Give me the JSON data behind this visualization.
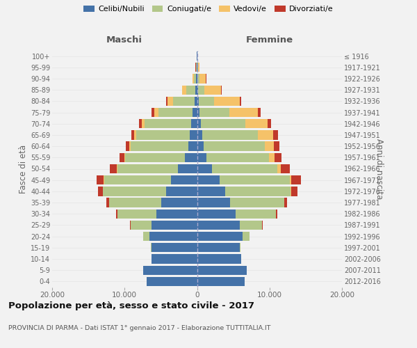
{
  "title": "Popolazione per età, sesso e stato civile - 2017",
  "subtitle": "PROVINCIA DI PARMA - Dati ISTAT 1° gennaio 2017 - Elaborazione TUTTITALIA.IT",
  "ylabel_left": "Fasce di età",
  "ylabel_right": "Anni di nascita",
  "label_maschi": "Maschi",
  "label_femmine": "Femmine",
  "legend_labels": [
    "Celibi/Nubili",
    "Coniugati/e",
    "Vedovi/e",
    "Divorziati/e"
  ],
  "colors": [
    "#4472a8",
    "#b3c78a",
    "#f5c269",
    "#c0392b"
  ],
  "age_groups": [
    "0-4",
    "5-9",
    "10-14",
    "15-19",
    "20-24",
    "25-29",
    "30-34",
    "35-39",
    "40-44",
    "45-49",
    "50-54",
    "55-59",
    "60-64",
    "65-69",
    "70-74",
    "75-79",
    "80-84",
    "85-89",
    "90-94",
    "95-99",
    "100+"
  ],
  "birth_years": [
    "2012-2016",
    "2007-2011",
    "2002-2006",
    "1997-2001",
    "1992-1996",
    "1987-1991",
    "1982-1986",
    "1977-1981",
    "1972-1976",
    "1967-1971",
    "1962-1966",
    "1957-1961",
    "1952-1956",
    "1947-1951",
    "1942-1946",
    "1937-1941",
    "1932-1936",
    "1927-1931",
    "1922-1926",
    "1917-1921",
    "≤ 1916"
  ],
  "males_cel": [
    7000,
    7400,
    6300,
    6300,
    6600,
    6300,
    5600,
    4900,
    4300,
    3600,
    2600,
    1700,
    1200,
    1000,
    800,
    600,
    350,
    200,
    100,
    60,
    30
  ],
  "males_con": [
    0,
    0,
    0,
    120,
    850,
    2900,
    5400,
    7200,
    8700,
    9200,
    8400,
    8200,
    8000,
    7400,
    6400,
    4700,
    3000,
    1300,
    320,
    70,
    10
  ],
  "males_ved": [
    0,
    0,
    0,
    0,
    2,
    6,
    12,
    22,
    45,
    65,
    85,
    110,
    160,
    260,
    420,
    620,
    730,
    520,
    210,
    55,
    5
  ],
  "males_div": [
    0,
    0,
    0,
    5,
    22,
    65,
    155,
    360,
    620,
    980,
    940,
    730,
    520,
    420,
    370,
    320,
    160,
    65,
    35,
    12,
    2
  ],
  "females_nub": [
    6600,
    6900,
    6100,
    5900,
    6300,
    5900,
    5300,
    4600,
    3900,
    3100,
    2100,
    1250,
    950,
    720,
    520,
    370,
    210,
    130,
    85,
    55,
    25
  ],
  "females_con": [
    0,
    0,
    0,
    110,
    930,
    3100,
    5600,
    7400,
    9000,
    9700,
    9000,
    8700,
    8400,
    7700,
    6100,
    4100,
    2100,
    850,
    210,
    45,
    5
  ],
  "females_ved": [
    0,
    0,
    0,
    0,
    5,
    12,
    22,
    45,
    110,
    210,
    420,
    730,
    1250,
    2100,
    3100,
    3900,
    3600,
    2300,
    950,
    220,
    12
  ],
  "females_div": [
    0,
    0,
    0,
    5,
    28,
    75,
    190,
    420,
    830,
    1350,
    1250,
    940,
    720,
    620,
    520,
    420,
    210,
    85,
    32,
    12,
    2
  ],
  "xlim": 20000,
  "xtick_positions": [
    -20000,
    -10000,
    0,
    10000,
    20000
  ],
  "xtick_labels": [
    "20.000",
    "10.000",
    "0",
    "10.000",
    "20.000"
  ],
  "background_color": "#f2f2f2",
  "grid_color": "#e8e8e8"
}
